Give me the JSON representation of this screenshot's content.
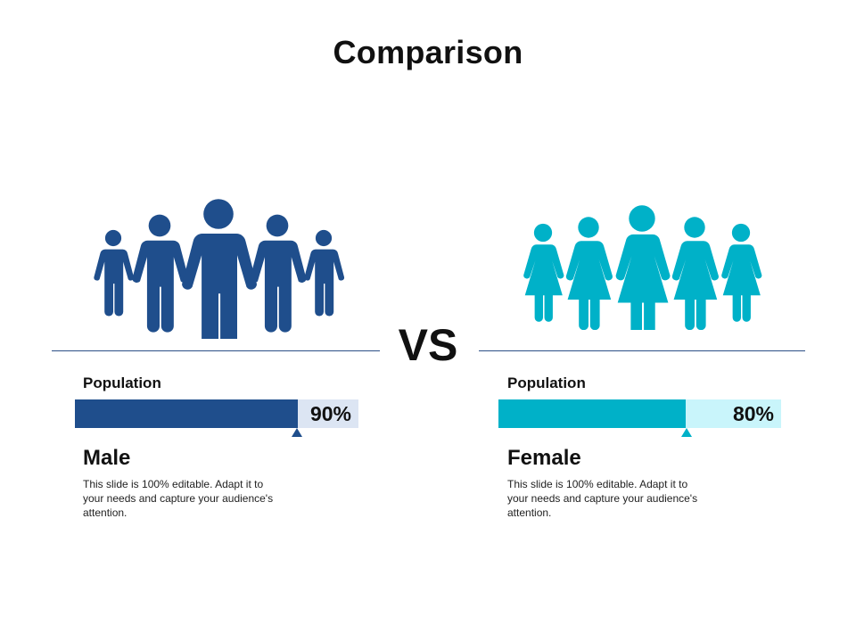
{
  "title": "Comparison",
  "vs_label": "VS",
  "colors": {
    "male": "#1f4e8c",
    "female": "#00b1c8",
    "male_track": "#dce5f3",
    "female_track": "#c9f5fb"
  },
  "male": {
    "icon": "male-people-icon",
    "metric_label": "Population",
    "percent": 90,
    "value_label": "90%",
    "name": "Male",
    "description": "This slide is 100% editable. Adapt it to your needs and capture your audience's attention."
  },
  "female": {
    "icon": "female-people-icon",
    "metric_label": "Population",
    "percent": 80,
    "value_label": "80%",
    "name": "Female",
    "description": "This slide is 100% editable. Adapt it to your needs and capture your audience's attention."
  }
}
